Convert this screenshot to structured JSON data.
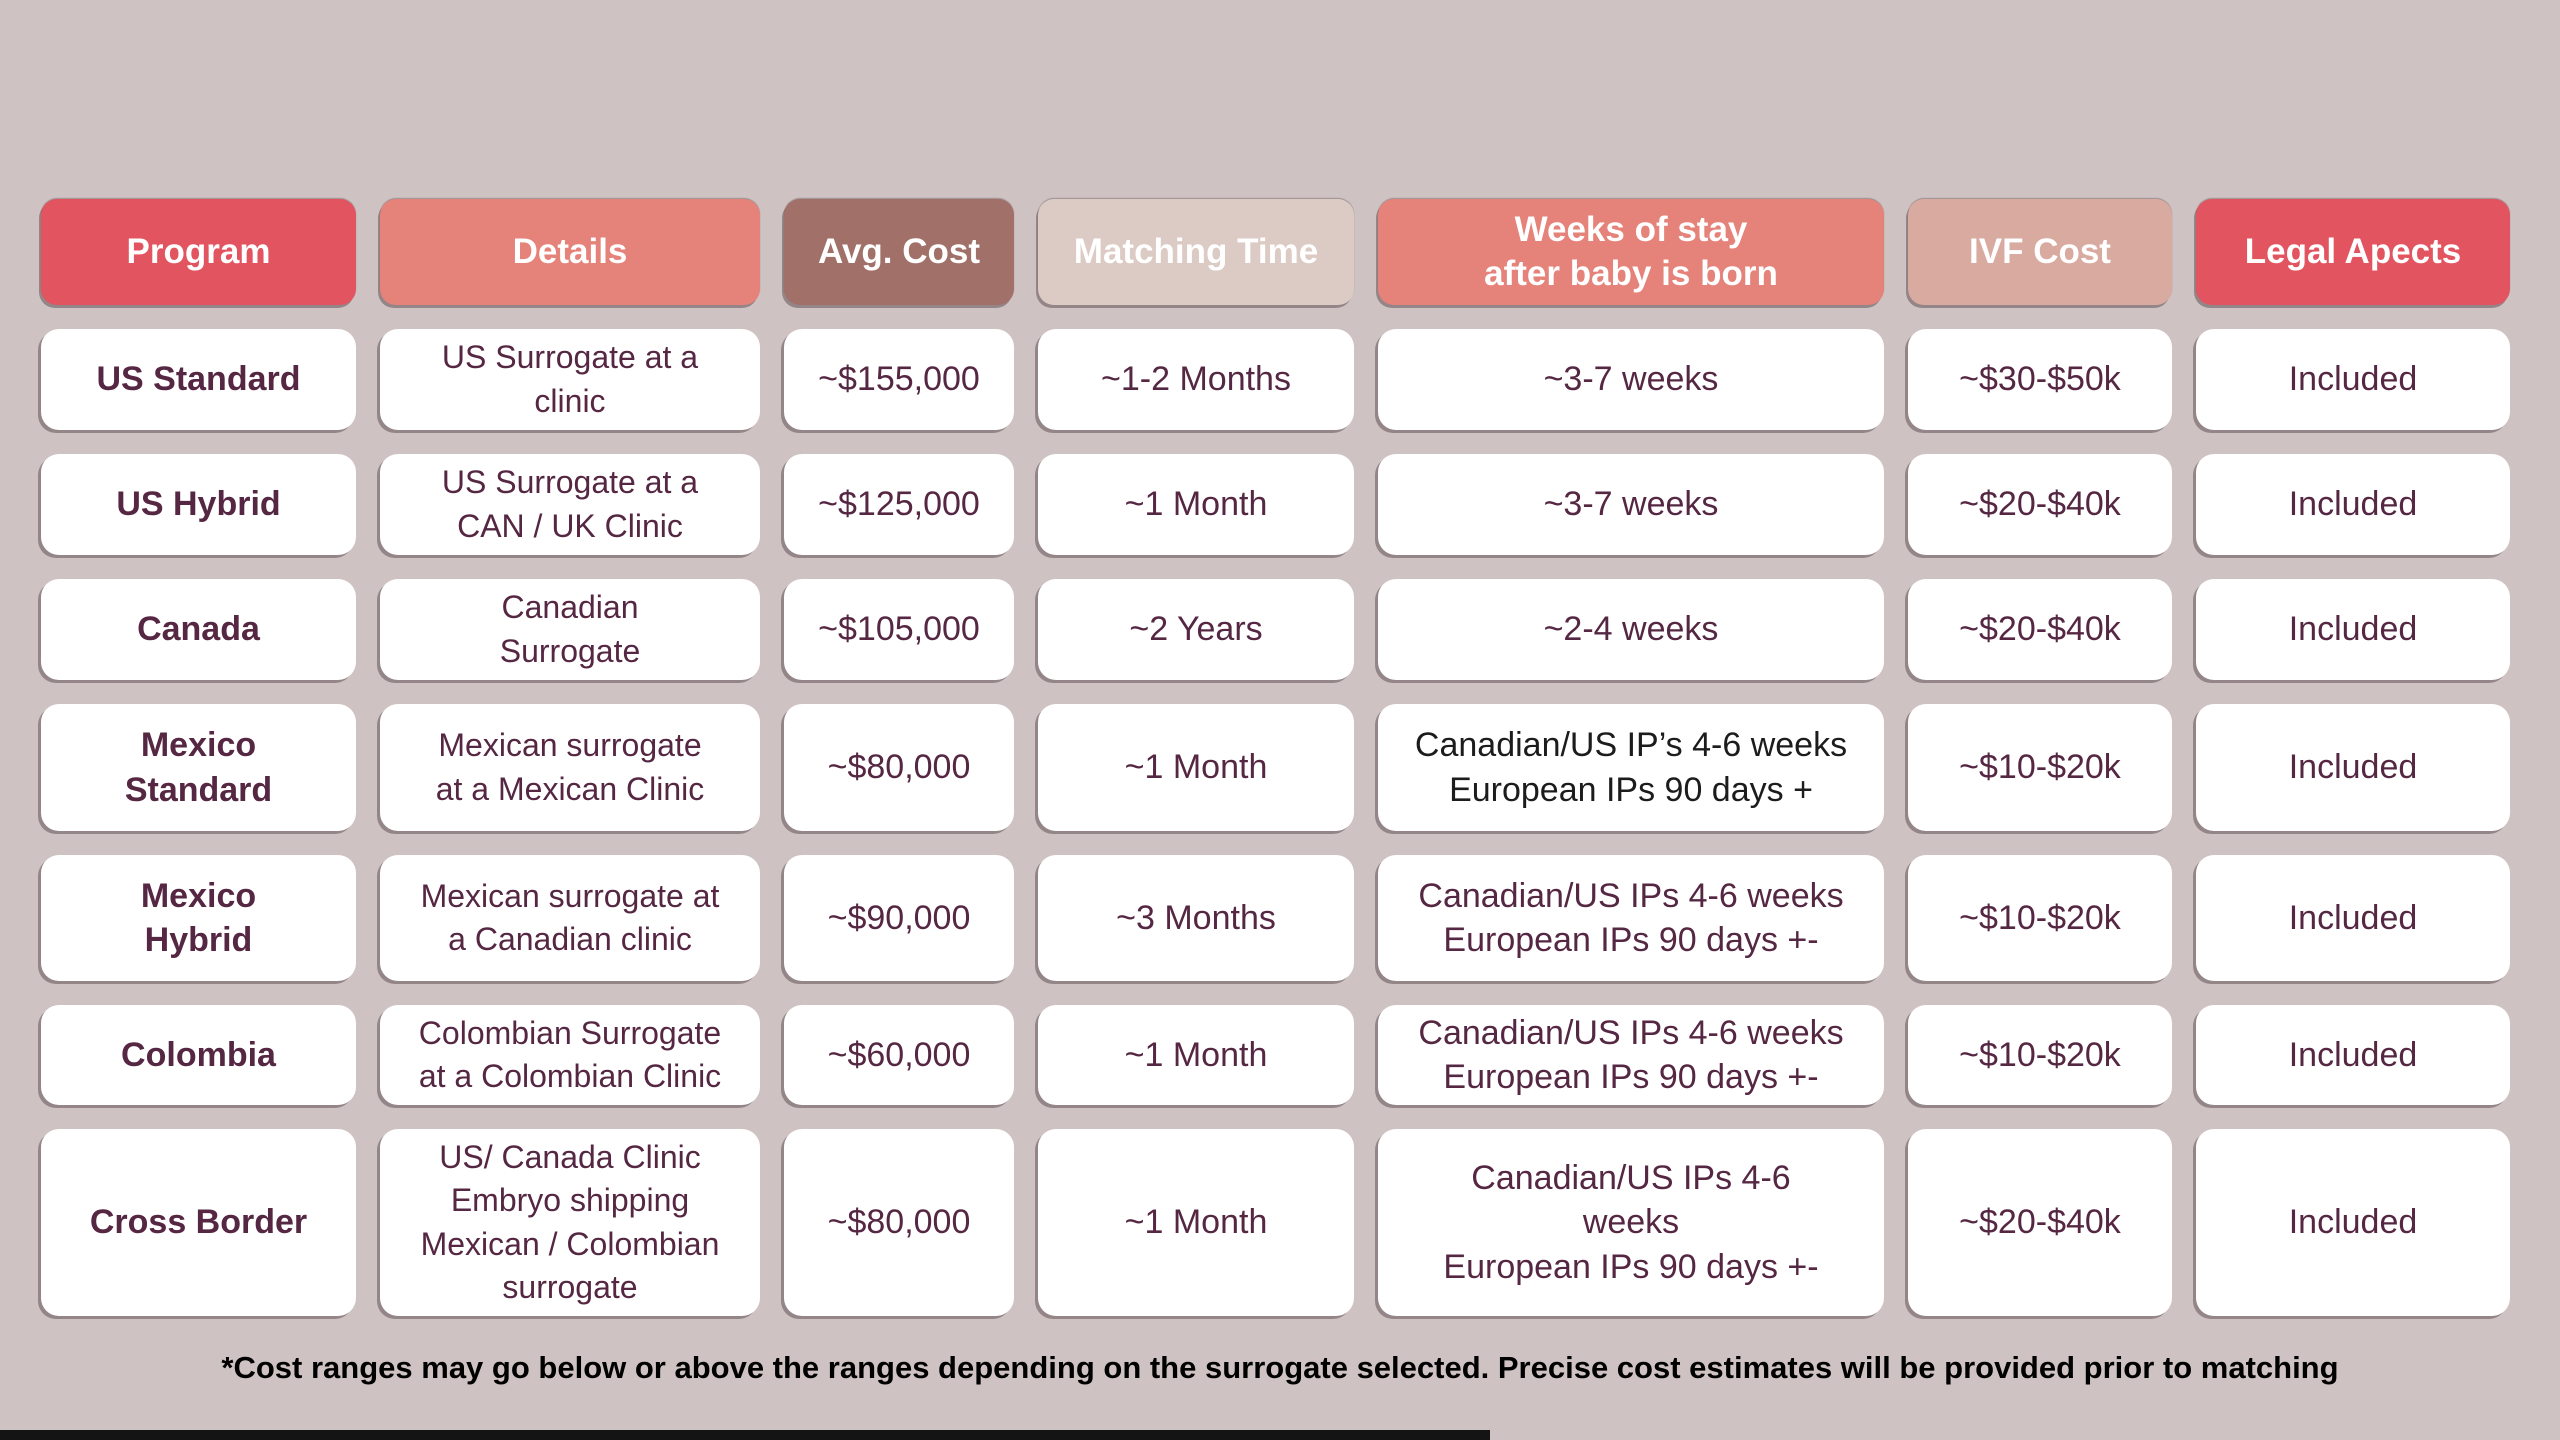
{
  "colors": {
    "page_bg": "#cec3c2",
    "cell_bg": "#ffffff",
    "cell_text": "#552742",
    "dark_cell_text": "#1c1c1c",
    "header_text": "#ffffff",
    "footer_text": "#000000"
  },
  "table": {
    "columns": [
      {
        "id": "program",
        "label": "Program",
        "color": "#e25460"
      },
      {
        "id": "details",
        "label": "Details",
        "color": "#e5827a"
      },
      {
        "id": "avg_cost",
        "label": "Avg. Cost",
        "color": "#a17169"
      },
      {
        "id": "matching_time",
        "label": "Matching Time",
        "color": "#dccac4"
      },
      {
        "id": "weeks_of_stay",
        "label": "Weeks of stay\nafter baby is born",
        "color": "#e5827a"
      },
      {
        "id": "ivf_cost",
        "label": "IVF Cost",
        "color": "#d9aaa0"
      },
      {
        "id": "legal",
        "label": "Legal Apects",
        "color": "#e25460"
      }
    ],
    "rows": [
      {
        "program": "US Standard",
        "details": "US Surrogate at a\nclinic",
        "avg_cost": "~$155,000",
        "matching_time": "~1-2 Months",
        "weeks_of_stay": "~3-7 weeks",
        "ivf_cost": "~$30-$50k",
        "legal": "Included"
      },
      {
        "program": "US Hybrid",
        "details": "US Surrogate at a\nCAN / UK Clinic",
        "avg_cost": "~$125,000",
        "matching_time": "~1 Month",
        "weeks_of_stay": "~3-7 weeks",
        "ivf_cost": "~$20-$40k",
        "legal": "Included"
      },
      {
        "program": "Canada",
        "details": "Canadian\nSurrogate",
        "avg_cost": "~$105,000",
        "matching_time": "~2 Years",
        "weeks_of_stay": "~2-4 weeks",
        "ivf_cost": "~$20-$40k",
        "legal": "Included"
      },
      {
        "program": "Mexico\nStandard",
        "details": "Mexican surrogate\nat a Mexican Clinic",
        "avg_cost": "~$80,000",
        "matching_time": "~1 Month",
        "weeks_of_stay": "Canadian/US IP’s 4-6 weeks\nEuropean IPs 90 days +",
        "ivf_cost": "~$10-$20k",
        "legal": "Included"
      },
      {
        "program": "Mexico\nHybrid",
        "details": "Mexican surrogate at\na Canadian clinic",
        "avg_cost": "~$90,000",
        "matching_time": "~3 Months",
        "weeks_of_stay": "Canadian/US IPs 4-6 weeks\nEuropean IPs 90 days +-",
        "ivf_cost": "~$10-$20k",
        "legal": "Included"
      },
      {
        "program": "Colombia",
        "details": "Colombian Surrogate\nat a Colombian Clinic",
        "avg_cost": "~$60,000",
        "matching_time": "~1 Month",
        "weeks_of_stay": "Canadian/US IPs 4-6 weeks\nEuropean IPs 90 days +-",
        "ivf_cost": "~$10-$20k",
        "legal": "Included"
      },
      {
        "program": "Cross Border",
        "details": "US/ Canada Clinic\nEmbryo shipping\nMexican / Colombian\nsurrogate",
        "avg_cost": "~$80,000",
        "matching_time": "~1 Month",
        "weeks_of_stay": "Canadian/US IPs 4-6\nweeks\nEuropean IPs 90 days +-",
        "ivf_cost": "~$20-$40k",
        "legal": "Included"
      }
    ]
  },
  "footnote": "*Cost ranges may go below or above the ranges depending on the surrogate selected. Precise cost estimates will be provided prior to matching",
  "chart_data": {
    "type": "table",
    "title": "Surrogacy program comparison",
    "columns": [
      "Program",
      "Details",
      "Avg. Cost",
      "Matching Time",
      "Weeks of stay after baby is born",
      "IVF Cost",
      "Legal Apects"
    ],
    "rows": [
      [
        "US Standard",
        "US Surrogate at a clinic",
        "~$155,000",
        "~1-2 Months",
        "~3-7 weeks",
        "~$30-$50k",
        "Included"
      ],
      [
        "US Hybrid",
        "US Surrogate at a CAN / UK Clinic",
        "~$125,000",
        "~1 Month",
        "~3-7 weeks",
        "~$20-$40k",
        "Included"
      ],
      [
        "Canada",
        "Canadian Surrogate",
        "~$105,000",
        "~2 Years",
        "~2-4 weeks",
        "~$20-$40k",
        "Included"
      ],
      [
        "Mexico Standard",
        "Mexican surrogate at a Mexican Clinic",
        "~$80,000",
        "~1 Month",
        "Canadian/US IP’s 4-6 weeks European IPs 90 days +",
        "~$10-$20k",
        "Included"
      ],
      [
        "Mexico Hybrid",
        "Mexican surrogate at a Canadian clinic",
        "~$90,000",
        "~3 Months",
        "Canadian/US IPs 4-6 weeks European IPs 90 days +-",
        "~$10-$20k",
        "Included"
      ],
      [
        "Colombia",
        "Colombian Surrogate at a Colombian Clinic",
        "~$60,000",
        "~1 Month",
        "Canadian/US IPs 4-6 weeks European IPs 90 days +-",
        "~$10-$20k",
        "Included"
      ],
      [
        "Cross Border",
        "US/ Canada Clinic Embryo shipping Mexican / Colombian surrogate",
        "~$80,000",
        "~1 Month",
        "Canadian/US IPs 4-6 weeks European IPs 90 days +-",
        "~$20-$40k",
        "Included"
      ]
    ],
    "footnote": "*Cost ranges may go below or above the ranges depending on the surrogate selected. Precise cost estimates will be provided prior to matching"
  }
}
